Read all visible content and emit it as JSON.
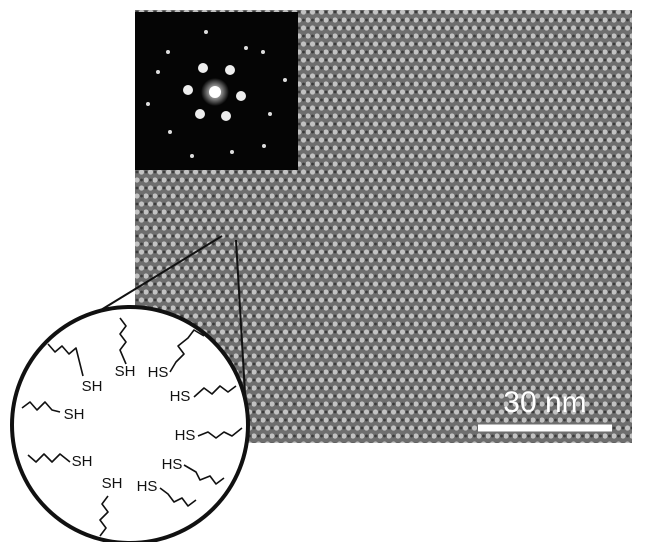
{
  "scale_bar": {
    "label": "30 nm"
  },
  "zoom_inset": {
    "labels": [
      "SH",
      "SH",
      "HS",
      "HS",
      "SH",
      "HS",
      "SH",
      "HS",
      "SH",
      "HS"
    ]
  }
}
